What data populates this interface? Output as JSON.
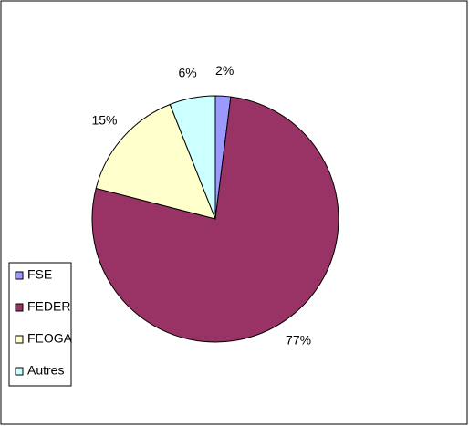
{
  "chart_data": {
    "type": "pie",
    "categories": [
      "FSE",
      "FEDER",
      "FEOGA",
      "Autres"
    ],
    "values": [
      2,
      77,
      15,
      6
    ],
    "value_labels": [
      "2%",
      "77%",
      "15%",
      "6%"
    ],
    "colors": [
      "#9999ff",
      "#993366",
      "#ffffcc",
      "#ccffff"
    ],
    "legend": "left"
  }
}
